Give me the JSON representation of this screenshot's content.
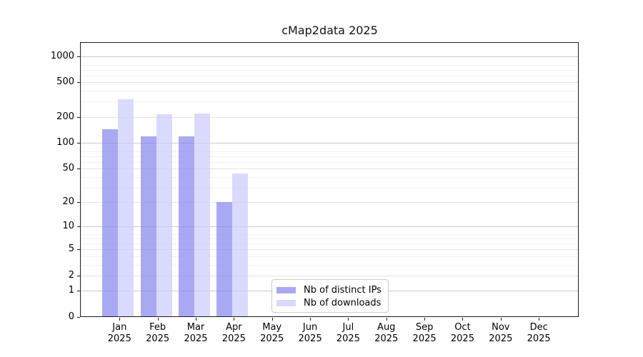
{
  "title": "cMap2data 2025",
  "chart_data": {
    "type": "bar",
    "title": "cMap2data 2025",
    "categories": [
      "Jan",
      "Feb",
      "Mar",
      "Apr",
      "May",
      "Jun",
      "Jul",
      "Aug",
      "Sep",
      "Oct",
      "Nov",
      "Dec"
    ],
    "year_label": "2025",
    "series": [
      {
        "name": "Nb of distinct IPs",
        "color": "#8888ee",
        "values": [
          145,
          118,
          120,
          20,
          0,
          0,
          0,
          0,
          0,
          0,
          0,
          0
        ]
      },
      {
        "name": "Nb of downloads",
        "color": "#ccccff",
        "values": [
          322,
          213,
          218,
          44,
          0,
          0,
          0,
          0,
          0,
          0,
          0,
          0
        ]
      }
    ],
    "y_ticks": [
      0,
      1,
      2,
      5,
      10,
      20,
      50,
      100,
      200,
      500,
      1000
    ],
    "y_decade_gridlines": [
      1,
      10,
      100,
      1000
    ],
    "y_minor_gridlines": [
      3,
      4,
      6,
      7,
      8,
      30,
      40,
      60,
      70,
      80,
      300,
      400,
      600,
      700,
      800
    ],
    "ylim": [
      0,
      1430
    ],
    "yscale": "log1p",
    "xlabel": "",
    "ylabel": "",
    "grid": true,
    "legend_position": "bottom-center-inside"
  }
}
